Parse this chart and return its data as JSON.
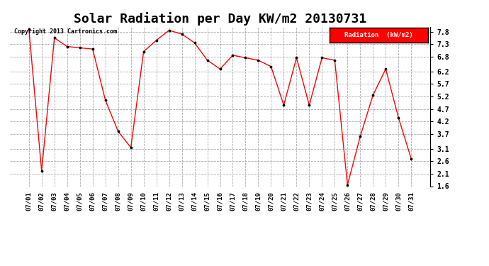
{
  "title": "Solar Radiation per Day KW/m2 20130731",
  "copyright": "Copyright 2013 Cartronics.com",
  "legend_label": "Radiation  (kW/m2)",
  "dates": [
    "07/01",
    "07/02",
    "07/03",
    "07/04",
    "07/05",
    "07/06",
    "07/07",
    "07/08",
    "07/09",
    "07/10",
    "07/11",
    "07/12",
    "07/13",
    "07/14",
    "07/15",
    "07/16",
    "07/17",
    "07/18",
    "07/19",
    "07/20",
    "07/21",
    "07/22",
    "07/23",
    "07/24",
    "07/25",
    "07/26",
    "07/27",
    "07/28",
    "07/29",
    "07/30",
    "07/31"
  ],
  "values": [
    7.9,
    2.2,
    7.55,
    7.2,
    7.15,
    7.1,
    5.05,
    3.8,
    3.15,
    7.0,
    7.45,
    7.85,
    7.7,
    7.35,
    6.65,
    6.3,
    6.85,
    6.75,
    6.65,
    6.4,
    4.85,
    6.75,
    4.85,
    6.75,
    6.65,
    1.65,
    3.6,
    5.25,
    6.3,
    4.35,
    2.7
  ],
  "line_color": "red",
  "marker_color": "black",
  "bg_color": "white",
  "grid_color": "#aaaaaa",
  "ylim": [
    1.6,
    8.0
  ],
  "yticks": [
    1.6,
    2.1,
    2.6,
    3.1,
    3.7,
    4.2,
    4.7,
    5.2,
    5.7,
    6.2,
    6.8,
    7.3,
    7.8
  ],
  "title_fontsize": 13,
  "legend_bg": "red",
  "legend_text_color": "white"
}
